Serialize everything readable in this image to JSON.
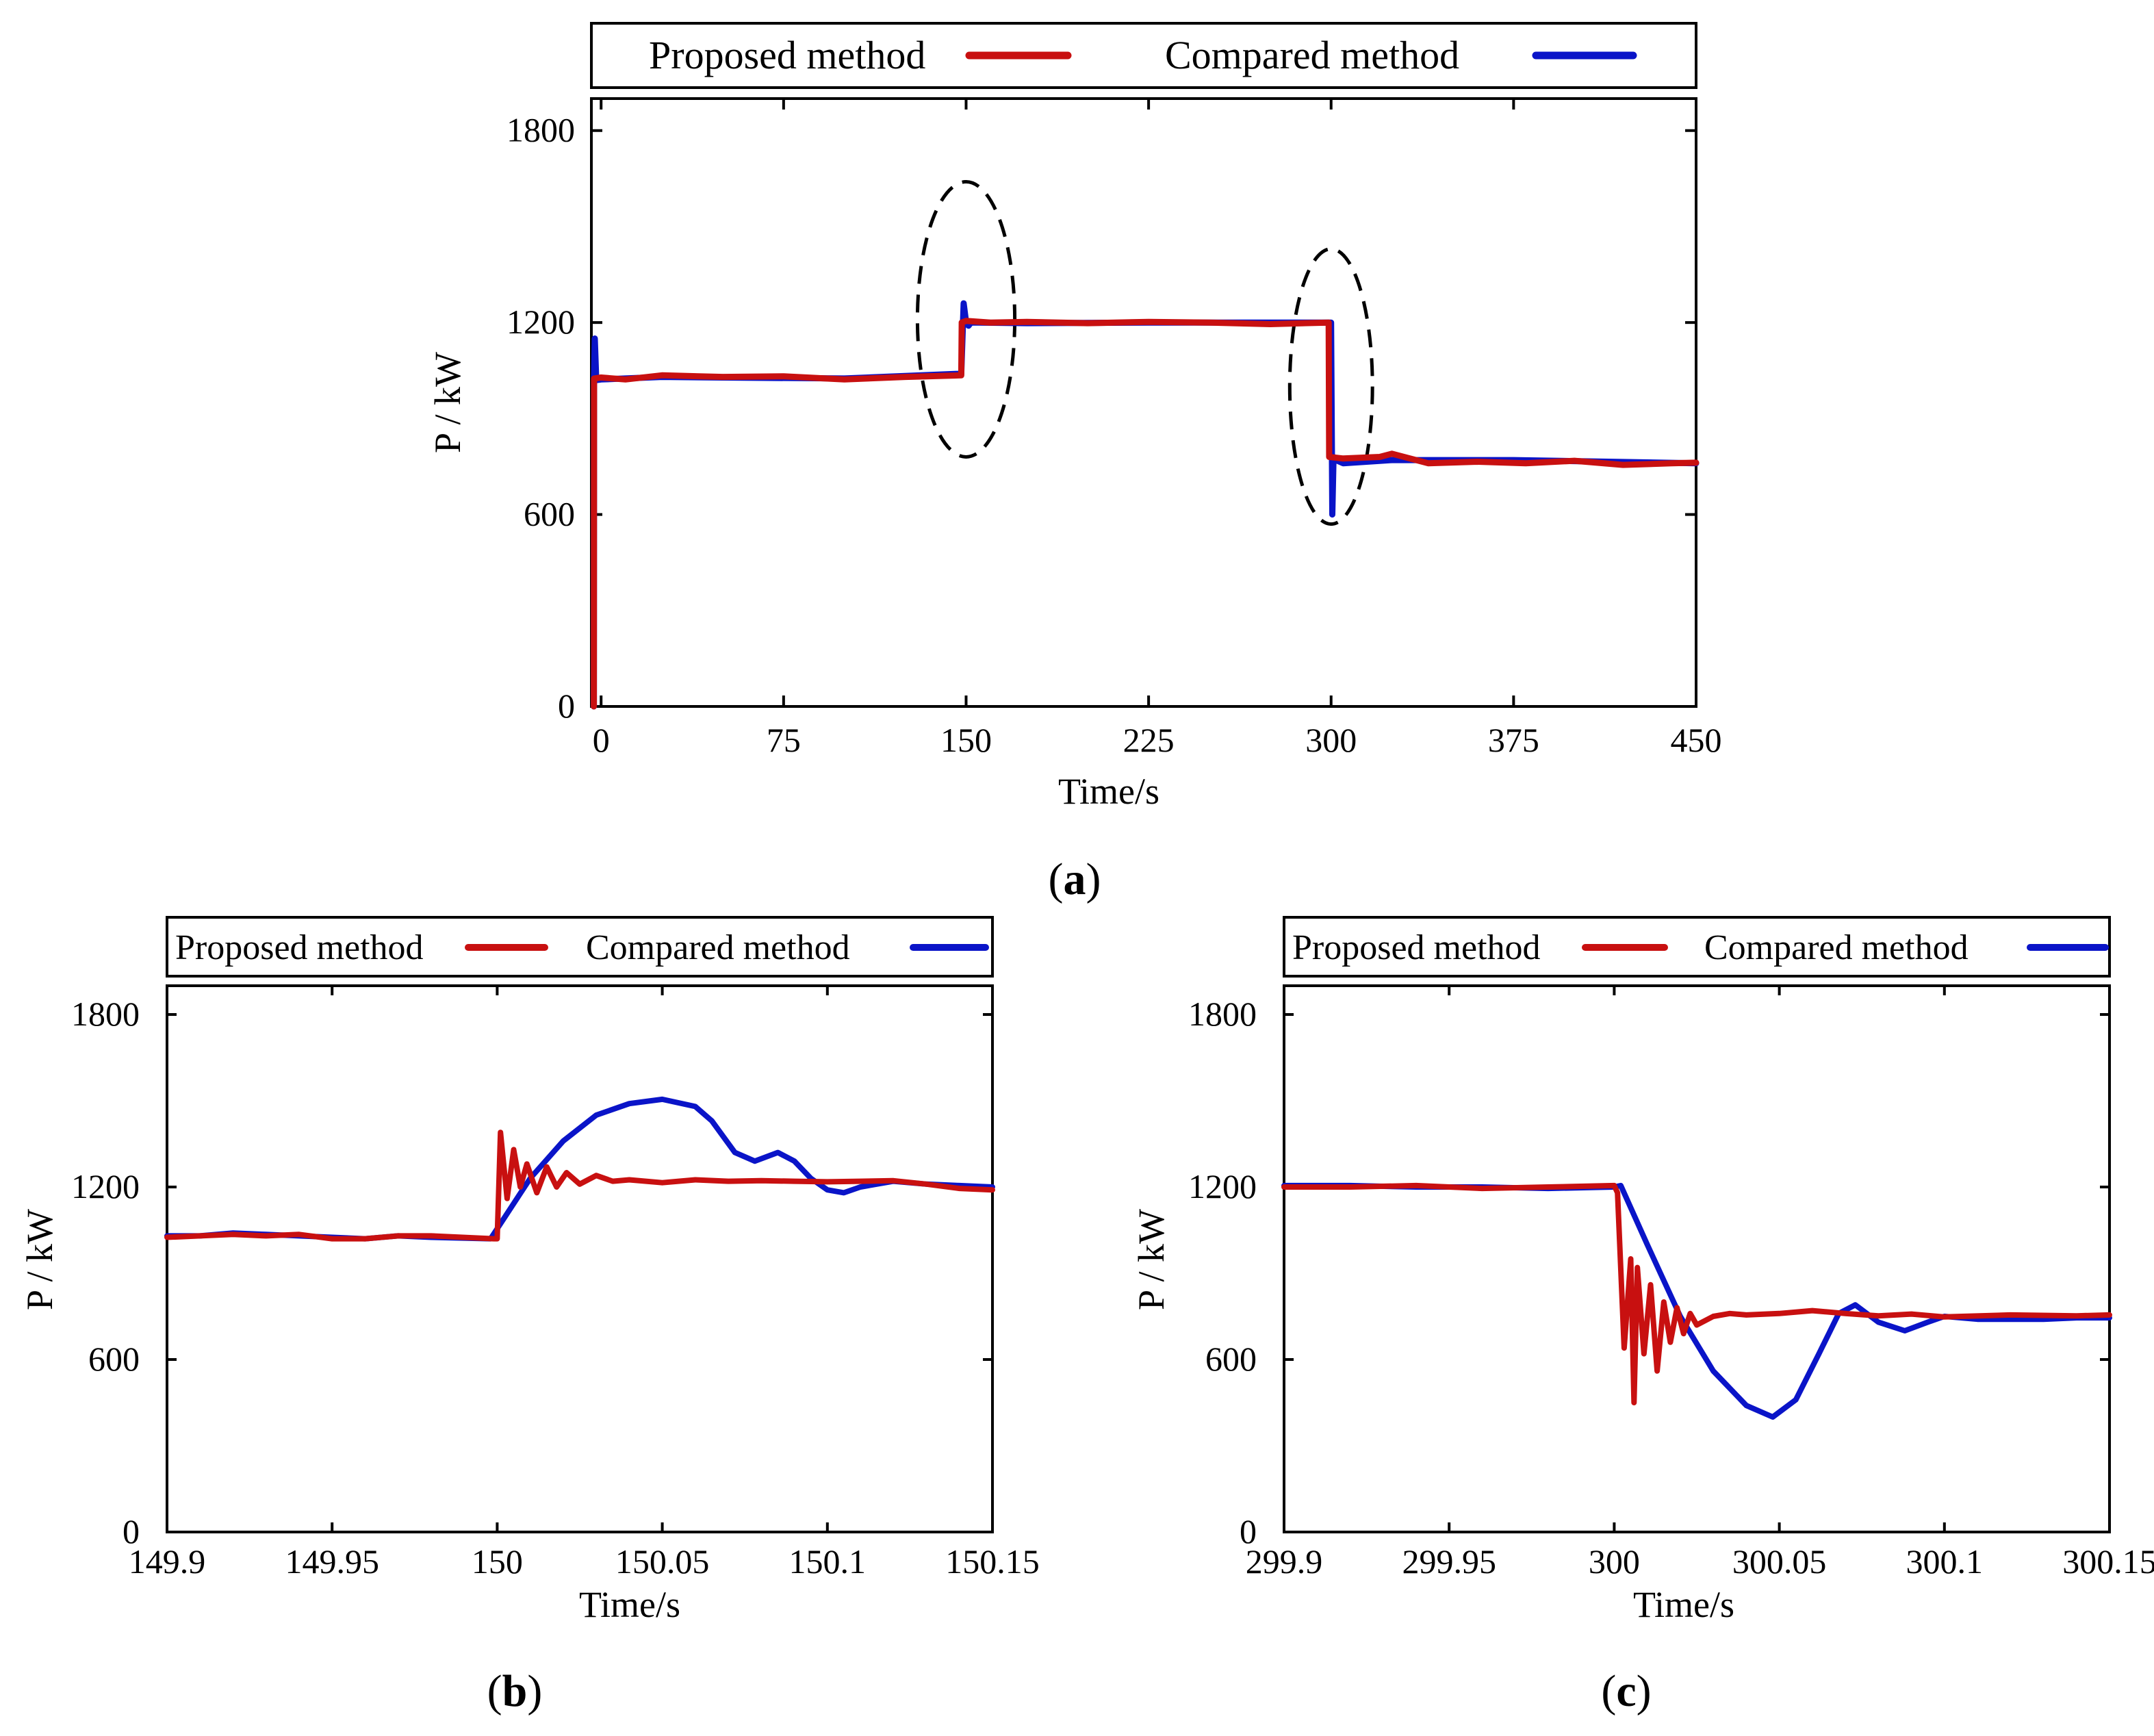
{
  "colors": {
    "proposed": "#c81010",
    "compared": "#0a14c8",
    "axis": "#000000",
    "ellipse": "#000000"
  },
  "chart_data": [
    {
      "id": "a",
      "caption": {
        "open": "(",
        "letter": "a",
        "close": ")"
      },
      "type": "line",
      "xlabel": "Time/s",
      "ylabel": "P / kW",
      "xlim": [
        -4,
        450
      ],
      "ylim": [
        0,
        1900
      ],
      "xticks": [
        0,
        75,
        150,
        225,
        300,
        375,
        450
      ],
      "xtick_labels": [
        "0",
        "75",
        "150",
        "225",
        "300",
        "375",
        "450"
      ],
      "yticks": [
        0,
        600,
        1200,
        1800
      ],
      "ytick_labels": [
        "0",
        "600",
        "1200",
        "1800"
      ],
      "legend": [
        "Proposed method",
        "Compared method"
      ],
      "annotations": [
        {
          "type": "dashed-ellipse",
          "cx": 150,
          "cy": 1210,
          "rx": 20,
          "ry": 430
        },
        {
          "type": "dashed-ellipse",
          "cx": 300,
          "cy": 1000,
          "rx": 17,
          "ry": 430
        }
      ],
      "series": [
        {
          "name": "Compared method",
          "x": [
            -3,
            -2.9,
            -2.6,
            -2,
            0,
            25,
            50,
            100,
            148,
            148,
            149,
            150,
            151,
            152,
            155,
            175,
            225,
            275,
            299,
            300,
            300.5,
            301,
            302,
            305,
            325,
            375,
            450
          ],
          "y": [
            0,
            1030,
            1150,
            1020,
            1022,
            1030,
            1028,
            1025,
            1040,
            1040,
            1260,
            1200,
            1190,
            1200,
            1200,
            1198,
            1200,
            1200,
            1200,
            1200,
            600,
            780,
            770,
            760,
            770,
            770,
            760
          ]
        },
        {
          "name": "Proposed method",
          "x": [
            -3,
            -2.9,
            0,
            10,
            25,
            50,
            75,
            100,
            125,
            148,
            148.2,
            150,
            160,
            175,
            200,
            225,
            250,
            275,
            299,
            299.2,
            305,
            320,
            325,
            340,
            360,
            380,
            400,
            420,
            440,
            450
          ],
          "y": [
            0,
            1025,
            1028,
            1022,
            1035,
            1030,
            1032,
            1022,
            1030,
            1035,
            1200,
            1205,
            1200,
            1202,
            1198,
            1202,
            1200,
            1195,
            1200,
            780,
            775,
            780,
            790,
            760,
            765,
            760,
            768,
            755,
            760,
            762
          ]
        }
      ]
    },
    {
      "id": "b",
      "caption": {
        "open": "(",
        "letter": "b",
        "close": ")"
      },
      "type": "line",
      "xlabel": "Time/s",
      "ylabel": "P / kW",
      "xlim": [
        149.9,
        150.15
      ],
      "ylim": [
        0,
        1900
      ],
      "xticks": [
        149.9,
        149.95,
        150,
        150.05,
        150.1,
        150.15
      ],
      "xtick_labels": [
        "149.9",
        "149.95",
        "150",
        "150.05",
        "150.1",
        "150.15"
      ],
      "yticks": [
        0,
        600,
        1200,
        1800
      ],
      "ytick_labels": [
        "0",
        "600",
        "1200",
        "1800"
      ],
      "legend": [
        "Proposed method",
        "Compared method"
      ],
      "series": [
        {
          "name": "Compared method",
          "x": [
            149.9,
            149.91,
            149.92,
            149.93,
            149.94,
            149.95,
            149.96,
            149.97,
            149.98,
            149.998,
            150.01,
            150.02,
            150.03,
            150.04,
            150.05,
            150.06,
            150.065,
            150.072,
            150.078,
            150.085,
            150.09,
            150.095,
            150.1,
            150.105,
            150.11,
            150.12,
            150.13,
            150.14,
            150.15
          ],
          "y": [
            1030,
            1030,
            1040,
            1035,
            1030,
            1025,
            1020,
            1030,
            1025,
            1020,
            1230,
            1360,
            1450,
            1490,
            1505,
            1480,
            1430,
            1320,
            1290,
            1320,
            1290,
            1230,
            1190,
            1180,
            1200,
            1220,
            1210,
            1205,
            1200
          ]
        },
        {
          "name": "Proposed method",
          "x": [
            149.9,
            149.91,
            149.92,
            149.93,
            149.94,
            149.95,
            149.96,
            149.97,
            149.98,
            149.999,
            150.0,
            150.001,
            150.003,
            150.005,
            150.007,
            150.009,
            150.012,
            150.015,
            150.018,
            150.021,
            150.025,
            150.03,
            150.035,
            150.04,
            150.05,
            150.06,
            150.07,
            150.08,
            150.09,
            150.1,
            150.11,
            150.12,
            150.13,
            150.14,
            150.15
          ],
          "y": [
            1025,
            1030,
            1035,
            1030,
            1035,
            1020,
            1020,
            1030,
            1030,
            1020,
            1020,
            1390,
            1160,
            1330,
            1200,
            1280,
            1180,
            1270,
            1200,
            1250,
            1210,
            1240,
            1220,
            1225,
            1215,
            1225,
            1220,
            1222,
            1220,
            1218,
            1220,
            1222,
            1210,
            1195,
            1190
          ]
        }
      ]
    },
    {
      "id": "c",
      "caption": {
        "open": "(",
        "letter": "c",
        "close": ")"
      },
      "type": "line",
      "xlabel": "Time/s",
      "ylabel": "P / kW",
      "xlim": [
        299.9,
        300.15
      ],
      "ylim": [
        0,
        1900
      ],
      "xticks": [
        299.9,
        299.95,
        300,
        300.05,
        300.1,
        300.15
      ],
      "xtick_labels": [
        "299.9",
        "299.95",
        "300",
        "300.05",
        "300.1",
        "300.15"
      ],
      "yticks": [
        0,
        600,
        1200,
        1800
      ],
      "ytick_labels": [
        "0",
        "600",
        "1200",
        "1800"
      ],
      "legend": [
        "Proposed method",
        "Compared method"
      ],
      "series": [
        {
          "name": "Compared method",
          "x": [
            299.9,
            299.92,
            299.94,
            299.96,
            299.98,
            300.0,
            300.002,
            300.01,
            300.02,
            300.03,
            300.04,
            300.048,
            300.055,
            300.062,
            300.068,
            300.073,
            300.08,
            300.088,
            300.095,
            300.1,
            300.11,
            300.12,
            300.13,
            300.14,
            300.15
          ],
          "y": [
            1205,
            1205,
            1200,
            1200,
            1195,
            1200,
            1205,
            1000,
            750,
            560,
            440,
            400,
            460,
            620,
            760,
            790,
            730,
            700,
            730,
            750,
            740,
            740,
            740,
            745,
            745
          ]
        },
        {
          "name": "Proposed method",
          "x": [
            299.9,
            299.92,
            299.94,
            299.96,
            299.98,
            300.0,
            300.001,
            300.003,
            300.005,
            300.006,
            300.007,
            300.009,
            300.011,
            300.013,
            300.015,
            300.017,
            300.019,
            300.021,
            300.023,
            300.025,
            300.03,
            300.035,
            300.04,
            300.05,
            300.06,
            300.07,
            300.08,
            300.09,
            300.1,
            300.12,
            300.14,
            300.15
          ],
          "y": [
            1200,
            1200,
            1205,
            1195,
            1200,
            1205,
            1180,
            640,
            950,
            450,
            920,
            620,
            860,
            560,
            800,
            660,
            780,
            690,
            760,
            720,
            750,
            760,
            755,
            760,
            770,
            760,
            752,
            758,
            748,
            755,
            752,
            755
          ]
        }
      ]
    }
  ]
}
